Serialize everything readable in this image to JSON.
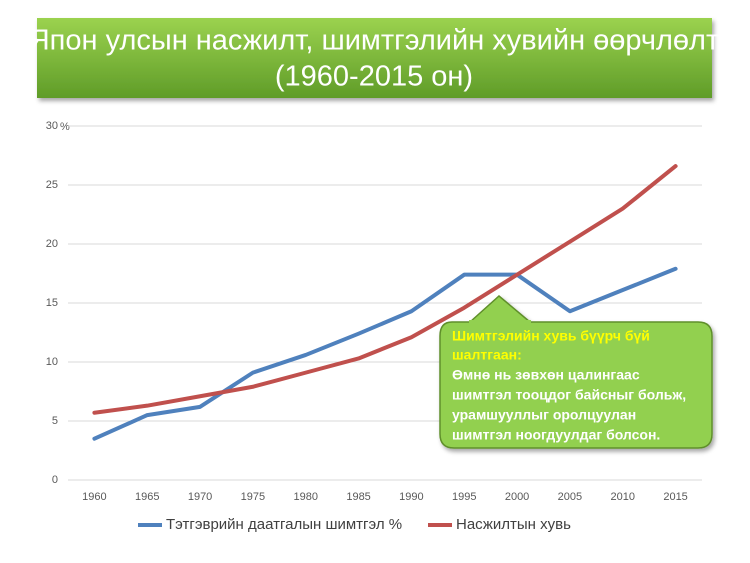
{
  "chart_data": {
    "type": "line",
    "title": [
      "Япон улсын насжилт, шимтгэлийн хувийн өөрчлөлт",
      "(1960-2015 он)"
    ],
    "y_unit": "%",
    "categories": [
      "1960",
      "1965",
      "1970",
      "1975",
      "1980",
      "1985",
      "1990",
      "1995",
      "2000",
      "2005",
      "2010",
      "2015"
    ],
    "series": [
      {
        "name": "Тэтгэврийн даатгалын шимтгэл %",
        "color": "#4f81bd",
        "values": [
          3.5,
          5.5,
          6.2,
          9.1,
          10.6,
          12.4,
          14.3,
          17.4,
          17.4,
          14.3,
          16.1,
          17.9
        ]
      },
      {
        "name": "Насжилтын хувь",
        "color": "#c0504d",
        "values": [
          5.7,
          6.3,
          7.1,
          7.9,
          9.1,
          10.3,
          12.1,
          14.6,
          17.4,
          20.2,
          23.0,
          26.6
        ]
      }
    ],
    "ylim": [
      0,
      30
    ],
    "yticks": [
      0,
      5,
      10,
      15,
      20,
      25,
      30
    ],
    "grid": true,
    "legend": "bottom",
    "annotation": {
      "heading": [
        "Шимтгэлийн хувь бүүрч бүй",
        "шалтгаан:"
      ],
      "lines": [
        "Өмнө нь зөвхөн цалингаас",
        "шимтгэл тооцдог байсныг больж,",
        "урамшууллыг оролцуулан",
        "шимтгэл ноогдуулдаг болсон."
      ]
    }
  }
}
